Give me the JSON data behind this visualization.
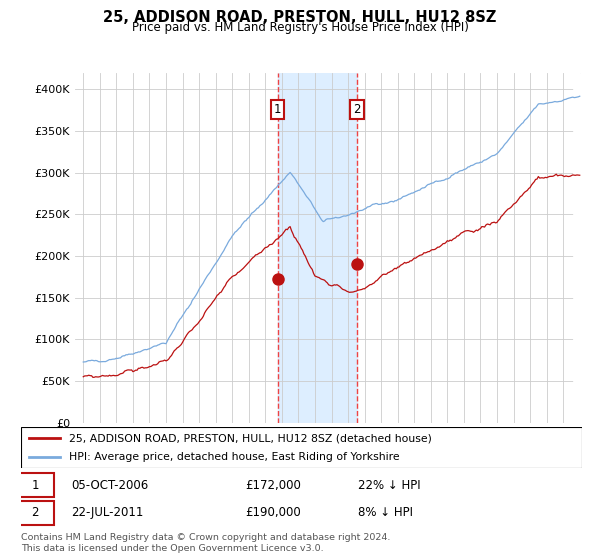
{
  "title": "25, ADDISON ROAD, PRESTON, HULL, HU12 8SZ",
  "subtitle": "Price paid vs. HM Land Registry's House Price Index (HPI)",
  "legend_entry1": "25, ADDISON ROAD, PRESTON, HULL, HU12 8SZ (detached house)",
  "legend_entry2": "HPI: Average price, detached house, East Riding of Yorkshire",
  "annotation1_date": "05-OCT-2006",
  "annotation1_price": "£172,000",
  "annotation1_hpi": "22% ↓ HPI",
  "annotation1_year": 2006.75,
  "annotation1_value": 172000,
  "annotation2_date": "22-JUL-2011",
  "annotation2_price": "£190,000",
  "annotation2_hpi": "8% ↓ HPI",
  "annotation2_year": 2011.55,
  "annotation2_value": 190000,
  "footer": "Contains HM Land Registry data © Crown copyright and database right 2024.\nThis data is licensed under the Open Government Licence v3.0.",
  "ylim_min": 0,
  "ylim_max": 420000,
  "xlim_min": 1994.5,
  "xlim_max": 2025.5,
  "hpi_color": "#7aaadd",
  "price_color": "#bb1111",
  "grid_color": "#cccccc",
  "shade_color": "#ddeeff",
  "annotation_box_color": "#bb1111",
  "vline_color": "#ee4444",
  "hatch_color": "#cccccc",
  "yticks": [
    0,
    50000,
    100000,
    150000,
    200000,
    250000,
    300000,
    350000,
    400000
  ]
}
